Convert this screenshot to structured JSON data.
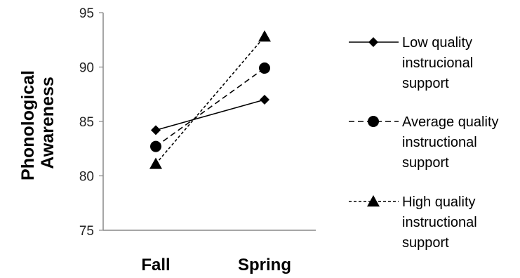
{
  "chart_data": {
    "type": "line",
    "categories": [
      "Fall",
      "Spring"
    ],
    "ylabel_lines": [
      "Phonological",
      "Awareness"
    ],
    "ylim": [
      75,
      95
    ],
    "yticks": [
      75,
      80,
      85,
      90,
      95
    ],
    "grid": false,
    "legend_position": "right",
    "series": [
      {
        "name_lines": [
          "Low quality",
          "instrucional",
          "support"
        ],
        "values": [
          84.2,
          87.0
        ],
        "marker": "diamond",
        "dash": "solid",
        "color": "#000000"
      },
      {
        "name_lines": [
          "Average quality",
          "instructional",
          "support"
        ],
        "values": [
          82.7,
          89.9
        ],
        "marker": "circle",
        "dash": "dashed",
        "color": "#000000"
      },
      {
        "name_lines": [
          "High quality",
          "instructional",
          "support"
        ],
        "values": [
          81.1,
          92.8
        ],
        "marker": "triangle",
        "dash": "dotted",
        "color": "#000000"
      }
    ]
  }
}
